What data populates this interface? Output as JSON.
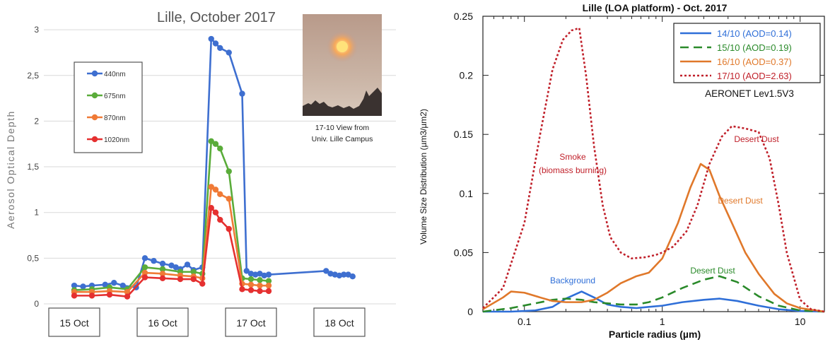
{
  "left_chart": {
    "title": "Lille, October 2017",
    "ylabel": "Aerosol Optical Depth",
    "photo_caption_line1": "17-10 View from",
    "photo_caption_line2": "Univ. Lille Campus"
  },
  "right_chart": {
    "title": "Lille (LOA platform) - Oct. 2017",
    "xlabel": "Particle radius (µm)",
    "ylabel": "Volume Size Distribution (µm3/µm2)",
    "source_note": "AERONET Lev1.5V3",
    "annotations": {
      "smoke_line1": "Smoke",
      "smoke_line2": "(biomass burning)",
      "desert_dust_1710": "Desert Dust",
      "desert_dust_1610": "Desert Dust",
      "desert_dust_1510": "Desert Dust",
      "background": "Background"
    }
  },
  "chart_data": [
    {
      "type": "line",
      "title": "Lille, October 2017",
      "ylabel": "Aerosol Optical Depth",
      "xlabel": "",
      "categories": [
        "15 Oct",
        "16 Oct",
        "17 Oct",
        "18 Oct"
      ],
      "y_ticks": [
        "0",
        "0,5",
        "1",
        "1,5",
        "2",
        "2,5",
        "3"
      ],
      "ylim": [
        0,
        3
      ],
      "legend": "top-left",
      "grid": true,
      "series": [
        {
          "name": "440nm",
          "color": "#3e6fd0",
          "x": [
            0.0,
            0.1,
            0.2,
            0.35,
            0.45,
            0.55,
            0.7,
            0.8,
            0.9,
            1.0,
            1.1,
            1.15,
            1.2,
            1.28,
            1.35,
            1.45,
            1.55,
            1.6,
            1.65,
            1.75,
            1.9,
            1.95,
            2.0,
            2.05,
            2.1,
            2.15,
            2.2,
            2.85,
            2.9,
            2.95,
            3.0,
            3.05,
            3.1,
            3.15
          ],
          "y": [
            0.2,
            0.19,
            0.2,
            0.21,
            0.23,
            0.2,
            0.18,
            0.5,
            0.47,
            0.44,
            0.42,
            0.4,
            0.38,
            0.43,
            0.37,
            0.4,
            2.9,
            2.85,
            2.8,
            2.75,
            2.3,
            0.36,
            0.33,
            0.32,
            0.33,
            0.31,
            0.32,
            0.36,
            0.33,
            0.32,
            0.31,
            0.32,
            0.32,
            0.3
          ]
        },
        {
          "name": "675nm",
          "color": "#5aac3a",
          "x": [
            0.0,
            0.2,
            0.4,
            0.6,
            0.8,
            1.0,
            1.2,
            1.35,
            1.45,
            1.55,
            1.6,
            1.65,
            1.75,
            1.9,
            2.0,
            2.1,
            2.2
          ],
          "y": [
            0.15,
            0.16,
            0.18,
            0.16,
            0.4,
            0.38,
            0.35,
            0.35,
            0.33,
            1.78,
            1.75,
            1.7,
            1.45,
            0.28,
            0.27,
            0.26,
            0.25
          ]
        },
        {
          "name": "870nm",
          "color": "#f07a36",
          "x": [
            0.0,
            0.2,
            0.4,
            0.6,
            0.8,
            1.0,
            1.2,
            1.35,
            1.45,
            1.55,
            1.6,
            1.65,
            1.75,
            1.9,
            2.0,
            2.1,
            2.2
          ],
          "y": [
            0.13,
            0.13,
            0.14,
            0.13,
            0.34,
            0.33,
            0.31,
            0.3,
            0.28,
            1.28,
            1.25,
            1.2,
            1.15,
            0.22,
            0.21,
            0.2,
            0.2
          ]
        },
        {
          "name": "1020nm",
          "color": "#e53030",
          "x": [
            0.0,
            0.2,
            0.4,
            0.6,
            0.8,
            1.0,
            1.2,
            1.35,
            1.45,
            1.55,
            1.6,
            1.65,
            1.75,
            1.9,
            2.0,
            2.1,
            2.2
          ],
          "y": [
            0.09,
            0.09,
            0.1,
            0.08,
            0.29,
            0.28,
            0.27,
            0.27,
            0.22,
            1.05,
            1.0,
            0.92,
            0.82,
            0.16,
            0.15,
            0.14,
            0.14
          ]
        }
      ]
    },
    {
      "type": "line",
      "title": "Lille (LOA platform) - Oct. 2017",
      "xlabel": "Particle radius (µm)",
      "ylabel": "Volume Size Distribution (µm3/µm2)",
      "x_scale": "log",
      "xlim": [
        0.05,
        15
      ],
      "ylim": [
        0,
        0.25
      ],
      "x_ticks": [
        "0.1",
        "1",
        "10"
      ],
      "y_ticks": [
        "0",
        "0.05",
        "0.1",
        "0.15",
        "0.2",
        "0.25"
      ],
      "legend": "top-right",
      "grid": false,
      "series": [
        {
          "name": "14/10 (AOD=0.14)",
          "color": "#2f6fd8",
          "dash": "solid",
          "x": [
            0.05,
            0.08,
            0.12,
            0.16,
            0.2,
            0.26,
            0.32,
            0.4,
            0.5,
            0.65,
            0.8,
            1.0,
            1.4,
            2.0,
            2.6,
            3.5,
            5.0,
            7.0,
            10.0,
            15.0
          ],
          "y": [
            0.0,
            0.0,
            0.001,
            0.004,
            0.011,
            0.017,
            0.012,
            0.006,
            0.004,
            0.003,
            0.004,
            0.005,
            0.008,
            0.01,
            0.011,
            0.009,
            0.005,
            0.002,
            0.0005,
            0.0
          ]
        },
        {
          "name": "15/10 (AOD=0.19)",
          "color": "#2a8a2a",
          "dash": "long",
          "x": [
            0.05,
            0.08,
            0.12,
            0.16,
            0.2,
            0.26,
            0.32,
            0.4,
            0.5,
            0.65,
            0.8,
            1.0,
            1.4,
            2.0,
            2.6,
            3.5,
            5.0,
            7.0,
            10.0,
            15.0
          ],
          "y": [
            0.0,
            0.003,
            0.007,
            0.01,
            0.011,
            0.01,
            0.008,
            0.007,
            0.006,
            0.006,
            0.008,
            0.012,
            0.02,
            0.027,
            0.03,
            0.025,
            0.013,
            0.005,
            0.001,
            0.0
          ]
        },
        {
          "name": "16/10 (AOD=0.37)",
          "color": "#e0782a",
          "dash": "solid",
          "x": [
            0.05,
            0.07,
            0.08,
            0.1,
            0.13,
            0.16,
            0.2,
            0.26,
            0.32,
            0.4,
            0.5,
            0.65,
            0.8,
            1.0,
            1.3,
            1.6,
            1.9,
            2.2,
            2.6,
            3.2,
            4.0,
            5.0,
            6.5,
            8.0,
            10.0,
            15.0
          ],
          "y": [
            0.002,
            0.012,
            0.017,
            0.016,
            0.012,
            0.009,
            0.008,
            0.008,
            0.01,
            0.016,
            0.024,
            0.03,
            0.033,
            0.045,
            0.075,
            0.105,
            0.125,
            0.12,
            0.098,
            0.075,
            0.05,
            0.032,
            0.015,
            0.007,
            0.003,
            0.0
          ]
        },
        {
          "name": "17/10 (AOD=2.63)",
          "color": "#c0202a",
          "dash": "dot",
          "x": [
            0.05,
            0.07,
            0.1,
            0.13,
            0.16,
            0.19,
            0.22,
            0.25,
            0.28,
            0.32,
            0.37,
            0.42,
            0.5,
            0.6,
            0.75,
            0.9,
            1.0,
            1.2,
            1.5,
            1.8,
            2.2,
            2.7,
            3.2,
            4.0,
            5.0,
            6.0,
            7.0,
            8.0,
            10.0,
            12.0,
            15.0
          ],
          "y": [
            0.003,
            0.02,
            0.075,
            0.15,
            0.205,
            0.23,
            0.238,
            0.24,
            0.2,
            0.14,
            0.09,
            0.063,
            0.05,
            0.045,
            0.046,
            0.048,
            0.05,
            0.055,
            0.068,
            0.09,
            0.125,
            0.148,
            0.157,
            0.155,
            0.152,
            0.13,
            0.09,
            0.05,
            0.01,
            0.002,
            0.0
          ]
        }
      ]
    }
  ]
}
